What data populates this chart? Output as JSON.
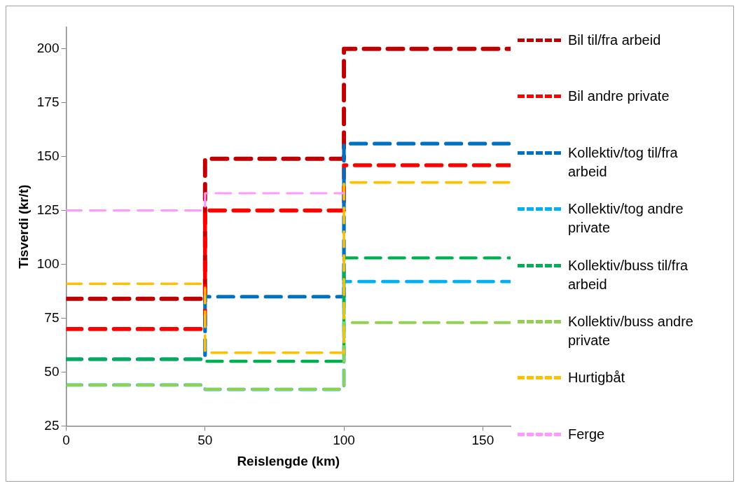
{
  "chart_data": {
    "type": "step",
    "xlabel": "Reislengde (km)",
    "ylabel": "Tisverdi (kr/t)",
    "xlim": [
      0,
      160
    ],
    "xticks": [
      0,
      50,
      100,
      150
    ],
    "ylim": [
      25,
      210
    ],
    "yticks": [
      25,
      50,
      75,
      100,
      125,
      150,
      175,
      200
    ],
    "grid": false,
    "legend": "right",
    "line_style": "dashed",
    "marker": "none",
    "series": [
      {
        "name": "Bil til/fra arbeid",
        "color": "#c00000",
        "x": [
          0,
          50,
          100,
          160
        ],
        "values": [
          84,
          149,
          200,
          200
        ]
      },
      {
        "name": "Bil andre private",
        "color": "#ff0000",
        "x": [
          0,
          50,
          100,
          160
        ],
        "values": [
          70,
          125,
          146,
          146
        ]
      },
      {
        "name": "Kollektiv/tog til/fra arbeid",
        "color": "#0070c0",
        "x": [
          0,
          50,
          100,
          160
        ],
        "values": [
          56,
          85,
          156,
          156
        ]
      },
      {
        "name": "Kollektiv/tog andre private",
        "color": "#00b0f0",
        "x": [
          0,
          50,
          100,
          160
        ],
        "values": [
          44,
          42,
          92,
          92
        ]
      },
      {
        "name": "Kollektiv/buss til/fra arbeid",
        "color": "#00b050",
        "x": [
          0,
          50,
          100,
          160
        ],
        "values": [
          56,
          55,
          103,
          103
        ]
      },
      {
        "name": "Kollektiv/buss andre private",
        "color": "#92d050",
        "x": [
          0,
          50,
          100,
          160
        ],
        "values": [
          44,
          42,
          73,
          73
        ]
      },
      {
        "name": "Hurtigbåt",
        "color": "#ffc000",
        "x": [
          0,
          50,
          100,
          160
        ],
        "values": [
          91,
          59,
          138,
          138
        ]
      },
      {
        "name": "Ferge",
        "color": "#ff99ff",
        "x": [
          0,
          50,
          100
        ],
        "values": [
          125,
          133,
          133
        ]
      }
    ]
  }
}
